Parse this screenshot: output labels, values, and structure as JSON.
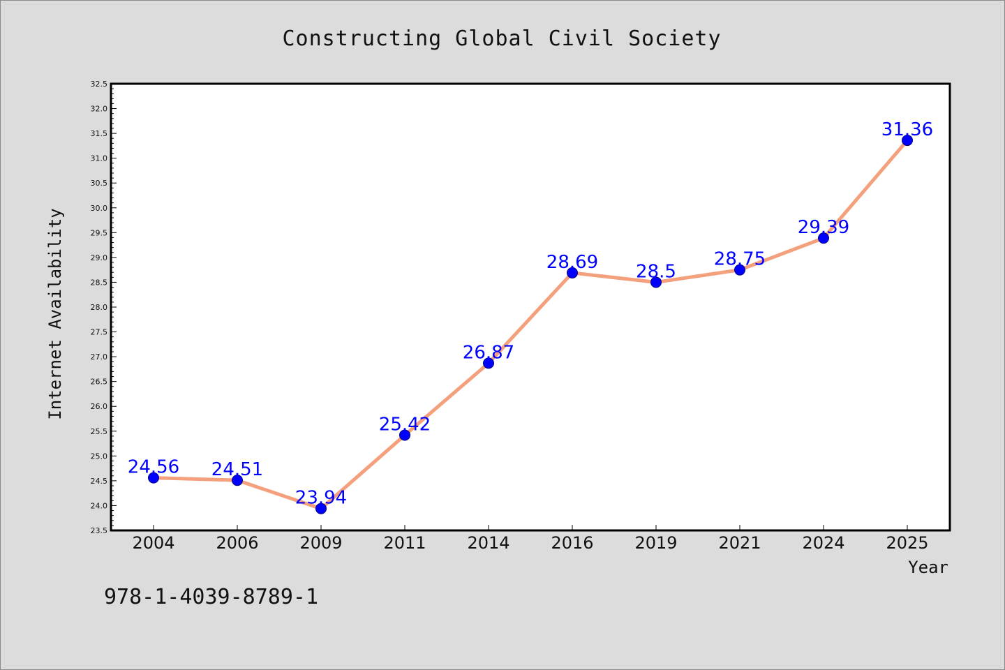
{
  "chart_data": {
    "type": "line",
    "title": "Constructing Global Civil Society",
    "xlabel": "Year",
    "ylabel": "Internet Availability",
    "categories": [
      "2004",
      "2006",
      "2009",
      "2011",
      "2014",
      "2016",
      "2019",
      "2021",
      "2024",
      "2025"
    ],
    "series": [
      {
        "values": [
          24.56,
          24.51,
          23.94,
          25.42,
          26.87,
          28.69,
          28.5,
          28.75,
          29.39,
          31.36
        ]
      }
    ],
    "data_labels": [
      "24.56",
      "24.51",
      "23.94",
      "25.42",
      "26.87",
      "28.69",
      "28.5",
      "28.75",
      "29.39",
      "31.36"
    ],
    "ylim": [
      23.5,
      32.5
    ],
    "yticks": [
      "23.5",
      "24.0",
      "24.5",
      "25.0",
      "25.5",
      "26.0",
      "26.5",
      "27.0",
      "27.5",
      "28.0",
      "28.5",
      "29.0",
      "29.5",
      "30.0",
      "30.5",
      "31.0",
      "31.5",
      "32.0",
      "32.5"
    ],
    "grid": false,
    "colors": {
      "line": "#f4a07c",
      "marker": "#0000ff",
      "data_label": "#0000ff",
      "plot_background": "#ffffff",
      "figure_background": "#dcdcdc"
    }
  },
  "footer": {
    "isbn": "978-1-4039-8789-1"
  }
}
